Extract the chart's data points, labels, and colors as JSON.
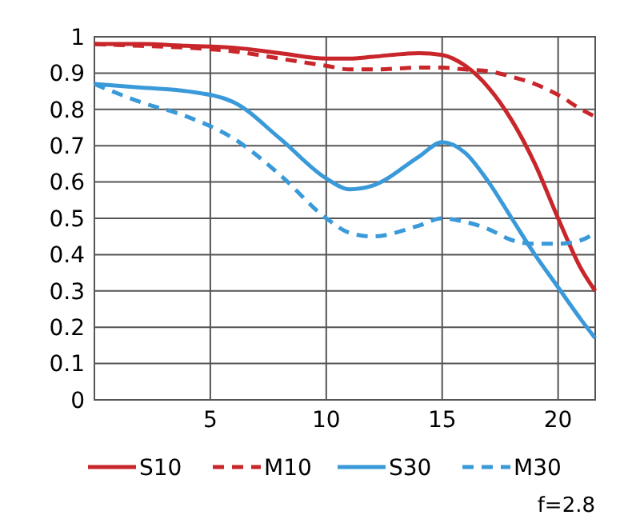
{
  "chart_data": {
    "type": "line",
    "x": [
      0,
      2,
      4,
      6,
      8,
      10,
      11,
      12,
      14,
      15,
      16,
      17,
      18,
      19,
      20,
      21,
      21.6
    ],
    "series": [
      {
        "name": "S10",
        "color": "#c8262a",
        "line_style": "solid",
        "values": [
          0.98,
          0.98,
          0.975,
          0.97,
          0.955,
          0.94,
          0.94,
          0.945,
          0.955,
          0.95,
          0.92,
          0.86,
          0.77,
          0.65,
          0.5,
          0.36,
          0.3
        ]
      },
      {
        "name": "M10",
        "color": "#c8262a",
        "line_style": "dashed",
        "values": [
          0.98,
          0.975,
          0.97,
          0.96,
          0.94,
          0.92,
          0.91,
          0.91,
          0.915,
          0.915,
          0.91,
          0.905,
          0.89,
          0.87,
          0.84,
          0.8,
          0.78
        ]
      },
      {
        "name": "S30",
        "color": "#3a9ad9",
        "line_style": "solid",
        "values": [
          0.87,
          0.86,
          0.85,
          0.82,
          0.72,
          0.61,
          0.58,
          0.59,
          0.67,
          0.71,
          0.68,
          0.6,
          0.5,
          0.4,
          0.31,
          0.22,
          0.17
        ]
      },
      {
        "name": "M30",
        "color": "#3a9ad9",
        "line_style": "dashed",
        "values": [
          0.87,
          0.82,
          0.78,
          0.72,
          0.62,
          0.5,
          0.46,
          0.45,
          0.48,
          0.5,
          0.49,
          0.47,
          0.44,
          0.43,
          0.43,
          0.44,
          0.46
        ]
      }
    ],
    "xlim": [
      0,
      21.6
    ],
    "xticks": [
      5,
      10,
      15,
      20
    ],
    "ylim": [
      0,
      1
    ],
    "yticks": [
      0,
      0.1,
      0.2,
      0.3,
      0.4,
      0.5,
      0.6,
      0.7,
      0.8,
      0.9,
      1
    ],
    "grid": true,
    "legend": "bottom",
    "annotations": [
      "f=2.8"
    ]
  }
}
